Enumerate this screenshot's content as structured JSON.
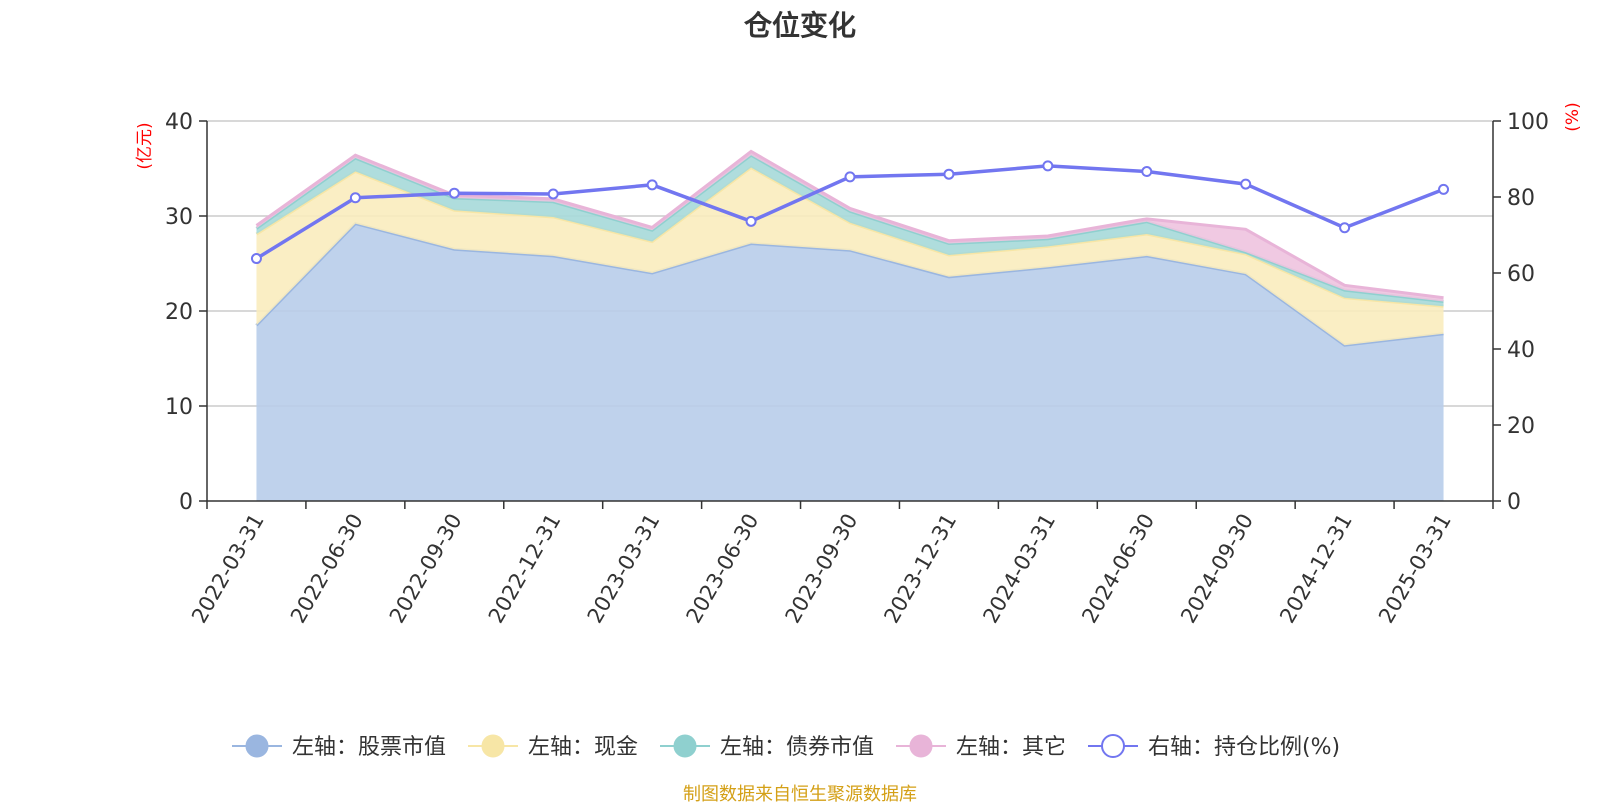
{
  "chart_data": {
    "type": "area",
    "title": "仓位变化",
    "source": "制图数据来自恒生聚源数据库",
    "left_axis_unit": "(亿元)",
    "right_axis_unit": "(%)",
    "left_ylim": [
      0,
      40
    ],
    "left_ticks": [
      0,
      10,
      20,
      30,
      40
    ],
    "right_ylim": [
      0,
      100
    ],
    "right_ticks": [
      0,
      20,
      40,
      60,
      80,
      100
    ],
    "grid": true,
    "legend_position": "bottom",
    "categories": [
      "2022-03-31",
      "2022-06-30",
      "2022-09-30",
      "2022-12-31",
      "2023-03-31",
      "2023-06-30",
      "2023-09-30",
      "2023-12-31",
      "2024-03-31",
      "2024-06-30",
      "2024-09-30",
      "2024-12-31",
      "2025-03-31"
    ],
    "stacked_series": [
      {
        "name": "左轴：股票市值",
        "axis": "left",
        "color": "#9ab6e0",
        "fill": "#b8cdea",
        "values": [
          18.5,
          29.2,
          26.5,
          25.8,
          24.0,
          27.1,
          26.4,
          23.6,
          24.6,
          25.8,
          23.9,
          16.4,
          17.6
        ]
      },
      {
        "name": "左轴：现金",
        "axis": "left",
        "color": "#f7e6a6",
        "fill": "#faecbe",
        "values": [
          9.6,
          5.5,
          4.1,
          4.1,
          3.3,
          8.0,
          2.9,
          2.3,
          2.2,
          2.3,
          2.1,
          5.0,
          2.9
        ]
      },
      {
        "name": "左轴：债券市值",
        "axis": "left",
        "color": "#8fd0cf",
        "fill": "#a6d9d9",
        "values": [
          0.6,
          1.4,
          1.3,
          1.6,
          1.2,
          1.3,
          1.2,
          1.2,
          0.8,
          1.3,
          0.2,
          0.8,
          0.5
        ]
      },
      {
        "name": "左轴：其它",
        "axis": "left",
        "color": "#e8b4d8",
        "fill": "#eec3df",
        "values": [
          0.3,
          0.3,
          0.3,
          0.3,
          0.3,
          0.4,
          0.3,
          0.3,
          0.3,
          0.3,
          2.4,
          0.5,
          0.4
        ]
      }
    ],
    "line_series": {
      "name": "右轴：持仓比例(%)",
      "axis": "right",
      "color": "#7276f0",
      "values": [
        63.8,
        79.8,
        81.0,
        80.8,
        83.2,
        73.6,
        85.3,
        86.0,
        88.2,
        86.7,
        83.4,
        71.9,
        82.0
      ]
    }
  }
}
